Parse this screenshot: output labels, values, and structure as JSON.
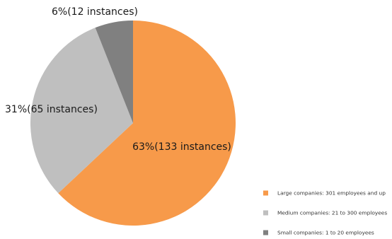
{
  "chart_data": {
    "type": "pie",
    "slices": [
      {
        "name": "Large companies: 301 employees and up",
        "percent": 63,
        "count": 133,
        "label": "63%(133 instances)",
        "color": "#F79A4A"
      },
      {
        "name": "Medium companies: 21 to 300 employees",
        "percent": 31,
        "count": 65,
        "label": "31%(65 instances)",
        "color": "#BFBFBF"
      },
      {
        "name": "Small companies: 1 to 20 employees",
        "percent": 6,
        "count": 12,
        "label": "6%(12 instances)",
        "color": "#808080"
      }
    ],
    "legend_position": "bottom-right",
    "start_angle": "12 o'clock",
    "direction": "clockwise"
  }
}
